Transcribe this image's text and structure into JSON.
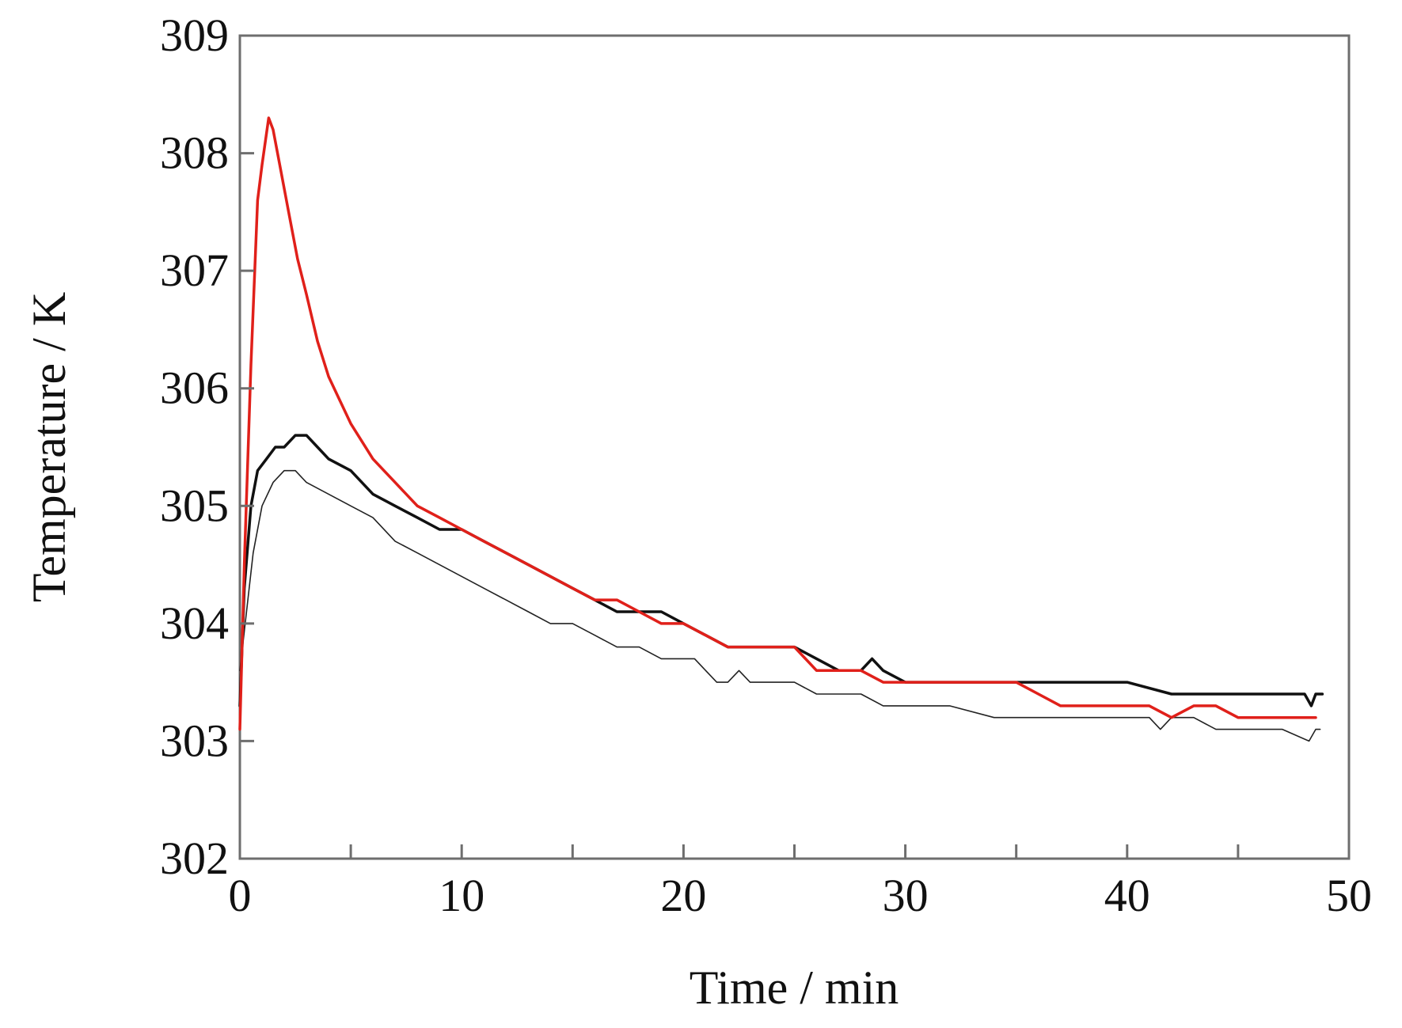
{
  "chart_data": {
    "type": "line",
    "title": "",
    "xlabel": "Time / min",
    "ylabel": "Temperature / K",
    "xlim": [
      0,
      50
    ],
    "ylim": [
      302,
      309
    ],
    "xticks": [
      0,
      10,
      20,
      30,
      40,
      50
    ],
    "yticks": [
      302,
      303,
      304,
      305,
      306,
      307,
      308,
      309
    ],
    "xtick_labels": [
      "0",
      "10",
      "20",
      "30",
      "40",
      "50"
    ],
    "ytick_labels": [
      "302",
      "303",
      "304",
      "305",
      "306",
      "307",
      "308",
      "309"
    ],
    "grid": false,
    "legend": null,
    "series": [
      {
        "name": "red",
        "color": "#e0201a",
        "width": 3.5,
        "x": [
          0.0,
          0.2,
          0.5,
          0.8,
          1.0,
          1.3,
          1.5,
          1.8,
          2.2,
          2.6,
          3.0,
          3.5,
          4.0,
          4.5,
          5.0,
          6.0,
          7.0,
          8.0,
          9.0,
          10.0,
          11.0,
          12.0,
          13.0,
          14.0,
          15.0,
          16.0,
          17.0,
          18.0,
          19.0,
          20.0,
          21.0,
          22.0,
          23.0,
          24.0,
          25.0,
          26.0,
          27.0,
          28.0,
          29.0,
          30.0,
          32.0,
          34.0,
          35.0,
          36.0,
          37.0,
          38.0,
          40.0,
          41.0,
          42.0,
          43.0,
          44.0,
          45.0,
          47.0,
          48.5
        ],
        "y": [
          303.1,
          304.5,
          306.2,
          307.6,
          307.9,
          308.3,
          308.2,
          307.9,
          307.5,
          307.1,
          306.8,
          306.4,
          306.1,
          305.9,
          305.7,
          305.4,
          305.2,
          305.0,
          304.9,
          304.8,
          304.7,
          304.6,
          304.5,
          304.4,
          304.3,
          304.2,
          304.2,
          304.1,
          304.0,
          304.0,
          303.9,
          303.8,
          303.8,
          303.8,
          303.8,
          303.6,
          303.6,
          303.6,
          303.5,
          303.5,
          303.5,
          303.5,
          303.5,
          303.4,
          303.3,
          303.3,
          303.3,
          303.3,
          303.2,
          303.3,
          303.3,
          303.2,
          303.2,
          303.2
        ]
      },
      {
        "name": "black-thick",
        "color": "#111111",
        "width": 3.5,
        "x": [
          0.0,
          0.2,
          0.5,
          0.8,
          1.2,
          1.6,
          2.0,
          2.5,
          3.0,
          3.5,
          4.0,
          5.0,
          6.0,
          7.0,
          8.0,
          9.0,
          10.0,
          11.0,
          12.0,
          13.0,
          14.0,
          15.0,
          16.0,
          17.0,
          18.0,
          19.0,
          20.0,
          21.0,
          22.0,
          23.0,
          24.0,
          25.0,
          26.0,
          27.0,
          28.0,
          28.5,
          29.0,
          30.0,
          32.0,
          35.0,
          38.0,
          40.0,
          42.0,
          44.0,
          46.0,
          48.0,
          48.3,
          48.5,
          48.8
        ],
        "y": [
          303.3,
          304.3,
          305.0,
          305.3,
          305.4,
          305.5,
          305.5,
          305.6,
          305.6,
          305.5,
          305.4,
          305.3,
          305.1,
          305.0,
          304.9,
          304.8,
          304.8,
          304.7,
          304.6,
          304.5,
          304.4,
          304.3,
          304.2,
          304.1,
          304.1,
          304.1,
          304.0,
          303.9,
          303.8,
          303.8,
          303.8,
          303.8,
          303.7,
          303.6,
          303.6,
          303.7,
          303.6,
          303.5,
          303.5,
          303.5,
          303.5,
          303.5,
          303.4,
          303.4,
          303.4,
          303.4,
          303.3,
          303.4,
          303.4
        ]
      },
      {
        "name": "black-thin",
        "color": "#222222",
        "width": 1.6,
        "x": [
          0.0,
          0.3,
          0.6,
          1.0,
          1.5,
          2.0,
          2.5,
          3.0,
          4.0,
          5.0,
          6.0,
          7.0,
          8.0,
          9.0,
          10.0,
          11.0,
          12.0,
          13.0,
          14.0,
          15.0,
          16.0,
          17.0,
          18.0,
          19.0,
          20.0,
          20.5,
          21.0,
          21.5,
          22.0,
          22.5,
          23.0,
          24.0,
          25.0,
          26.0,
          27.0,
          28.0,
          29.0,
          30.0,
          32.0,
          34.0,
          35.0,
          37.0,
          39.0,
          41.0,
          41.5,
          42.0,
          43.0,
          44.0,
          45.0,
          47.0,
          48.2,
          48.5,
          48.7
        ],
        "y": [
          303.6,
          304.1,
          304.6,
          305.0,
          305.2,
          305.3,
          305.3,
          305.2,
          305.1,
          305.0,
          304.9,
          304.7,
          304.6,
          304.5,
          304.4,
          304.3,
          304.2,
          304.1,
          304.0,
          304.0,
          303.9,
          303.8,
          303.8,
          303.7,
          303.7,
          303.7,
          303.6,
          303.5,
          303.5,
          303.6,
          303.5,
          303.5,
          303.5,
          303.4,
          303.4,
          303.4,
          303.3,
          303.3,
          303.3,
          303.2,
          303.2,
          303.2,
          303.2,
          303.2,
          303.1,
          303.2,
          303.2,
          303.1,
          303.1,
          303.1,
          303.0,
          303.1,
          303.1
        ]
      }
    ]
  }
}
